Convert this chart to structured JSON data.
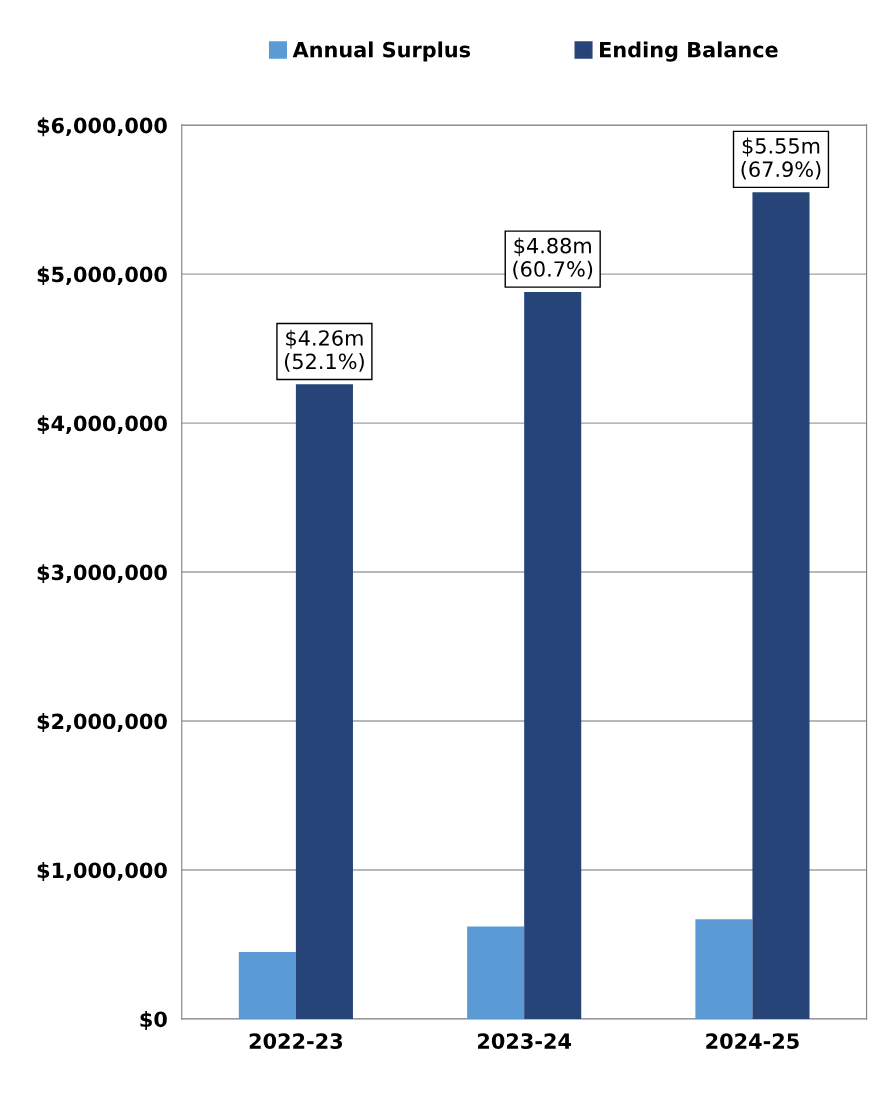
{
  "chart_data": {
    "type": "bar",
    "categories": [
      "2022-23",
      "2023-24",
      "2024-25"
    ],
    "series": [
      {
        "name": "Annual Surplus",
        "color": "#5b9bd5",
        "values": [
          450000,
          620000,
          670000
        ]
      },
      {
        "name": "Ending Balance",
        "color": "#264478",
        "values": [
          4260000,
          4880000,
          5550000
        ],
        "value_labels": [
          "$4.26m\n(52.1%)",
          "$4.88m\n(60.7%)",
          "$5.55m\n(67.9%)"
        ]
      }
    ],
    "ylim": [
      0,
      6000000
    ],
    "yticks": [
      {
        "value": 0,
        "label": "$0"
      },
      {
        "value": 1000000,
        "label": "$1,000,000"
      },
      {
        "value": 2000000,
        "label": "$2,000,000"
      },
      {
        "value": 3000000,
        "label": "$3,000,000"
      },
      {
        "value": 4000000,
        "label": "$4,000,000"
      },
      {
        "value": 5000000,
        "label": "$5,000,000"
      },
      {
        "value": 6000000,
        "label": "$6,000,000"
      }
    ],
    "grid": "y",
    "legend": "top"
  }
}
